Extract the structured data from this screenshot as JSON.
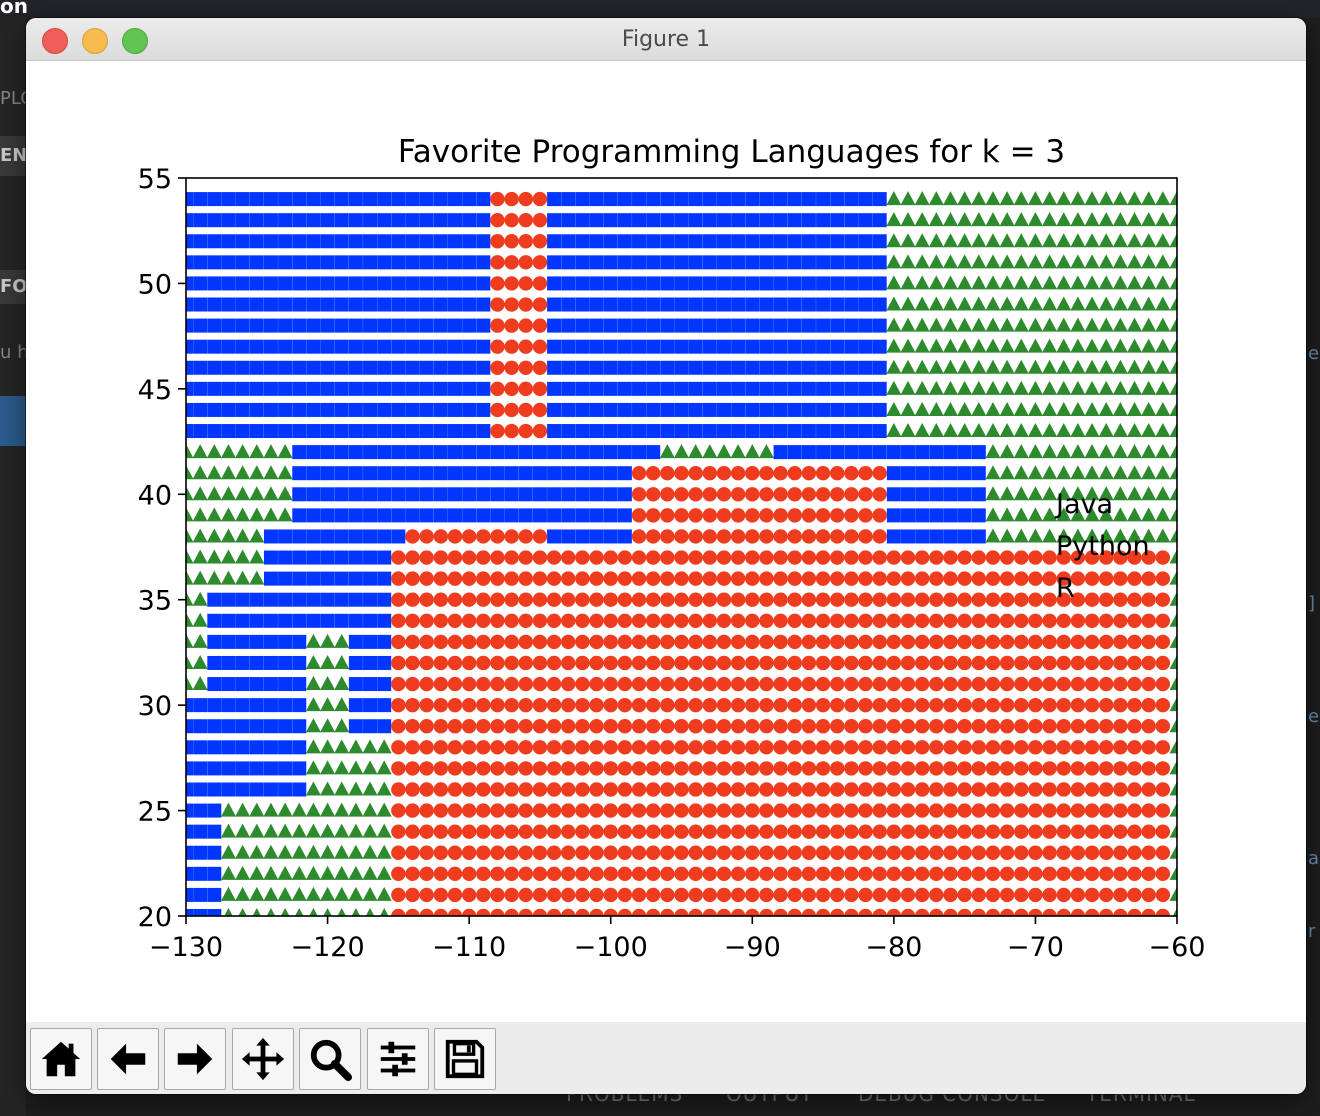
{
  "app": {
    "window_title": "Figure 1",
    "buttons": {
      "close": "close",
      "minimize": "minimize",
      "maximize": "maximize"
    }
  },
  "background_editor": {
    "top_fragment": "on",
    "sidebar_fragments": [
      "PLO",
      "EN",
      "FO",
      "u h"
    ],
    "right_fragments": [
      "e",
      "]",
      "e",
      "a",
      "r"
    ],
    "bottom_tabs": [
      "PROBLEMS",
      "OUTPUT",
      "DEBUG CONSOLE",
      "TERMINAL"
    ]
  },
  "toolbar": {
    "items": [
      {
        "name": "home-icon",
        "tooltip": "Home"
      },
      {
        "name": "back-icon",
        "tooltip": "Back"
      },
      {
        "name": "forward-icon",
        "tooltip": "Forward"
      },
      {
        "name": "pan-icon",
        "tooltip": "Pan"
      },
      {
        "name": "zoom-icon",
        "tooltip": "Zoom"
      },
      {
        "name": "configure-subplots-icon",
        "tooltip": "Subplots"
      },
      {
        "name": "save-icon",
        "tooltip": "Save"
      }
    ]
  },
  "chart_data": {
    "type": "scatter",
    "title": "Favorite Programming Languages for k = 3",
    "xlabel": "",
    "ylabel": "",
    "xlim": [
      -130,
      -60
    ],
    "ylim": [
      20,
      55
    ],
    "xticks": [
      -130,
      -120,
      -110,
      -100,
      -90,
      -80,
      -70,
      -60
    ],
    "yticks": [
      20,
      25,
      30,
      35,
      40,
      45,
      50,
      55
    ],
    "xtick_labels": [
      "−130",
      "−120",
      "−110",
      "−100",
      "−90",
      "−80",
      "−70",
      "−60"
    ],
    "ytick_labels": [
      "20",
      "25",
      "30",
      "35",
      "40",
      "45",
      "50",
      "55"
    ],
    "grid": false,
    "legend": {
      "placement": "right",
      "entries": [
        "Java",
        "Python",
        "R"
      ]
    },
    "series": [
      {
        "name": "Java",
        "marker": "square",
        "color": "#0036ff",
        "regions": [
          {
            "y": [
              42.5,
              54.5
            ],
            "x": [
              -130,
              -108.5
            ]
          },
          {
            "y": [
              42.5,
              54.5
            ],
            "x": [
              -104.5,
              -80.5
            ]
          },
          {
            "y": [
              28.5,
              42.5
            ],
            "x": [
              -118.5,
              -115
            ]
          },
          {
            "y": [
              36.5,
              42.5
            ],
            "x": [
              -117.5,
              -96
            ]
          },
          {
            "y": [
              33.5,
              38.5
            ],
            "x": [
              -124.5,
              -114
            ]
          },
          {
            "y": [
              35.5,
              37.5
            ],
            "x": [
              -107,
              -100
            ]
          },
          {
            "y": [
              32.5,
              34.5
            ],
            "x": [
              -105,
              -97
            ]
          },
          {
            "y": [
              29.5,
              32.5
            ],
            "x": [
              -103,
              -100.5
            ]
          },
          {
            "y": [
              33,
              43
            ],
            "x": [
              -88,
              -73
            ]
          },
          {
            "y": [
              30,
              36
            ],
            "x": [
              -86,
              -67
            ]
          },
          {
            "y": [
              28.5,
              31
            ],
            "x": [
              -74,
              -66
            ]
          },
          {
            "y": [
              20,
              31
            ],
            "x": [
              -130,
              -127
            ]
          },
          {
            "y": [
              26,
              36
            ],
            "x": [
              -128,
              -121
            ]
          },
          {
            "y": [
              36,
              42.5
            ],
            "x": [
              -122,
              -117
            ]
          }
        ]
      },
      {
        "name": "Python",
        "marker": "circle",
        "color": "#f03c1e",
        "regions": [
          {
            "y": [
              42.5,
              54.5
            ],
            "x": [
              -108.5,
              -104.5
            ]
          },
          {
            "y": [
              20,
              37.5
            ],
            "x": [
              -115,
              -60
            ]
          },
          {
            "y": [
              37.5,
              42
            ],
            "x": [
              -98,
              -80
            ]
          },
          {
            "y": [
              36,
              39
            ],
            "x": [
              -114,
              -104
            ]
          },
          {
            "y": [
              42.5,
              47.5
            ],
            "x": [
              -104,
              -100.5
            ]
          }
        ]
      },
      {
        "name": "R",
        "marker": "triangle",
        "color": "#2d8a2d",
        "regions": [
          {
            "y": [
              42.5,
              54.5
            ],
            "x": [
              -80.5,
              -60
            ]
          },
          {
            "y": [
              20,
              42.5
            ],
            "x": [
              -130,
              -60
            ]
          },
          {
            "y": [
              42.5,
              49
            ],
            "x": [
              -89,
              -84
            ]
          },
          {
            "y": [
              31,
              42
            ],
            "x": [
              -96,
              -90
            ]
          }
        ]
      }
    ],
    "legend_text_color": "#000000"
  }
}
